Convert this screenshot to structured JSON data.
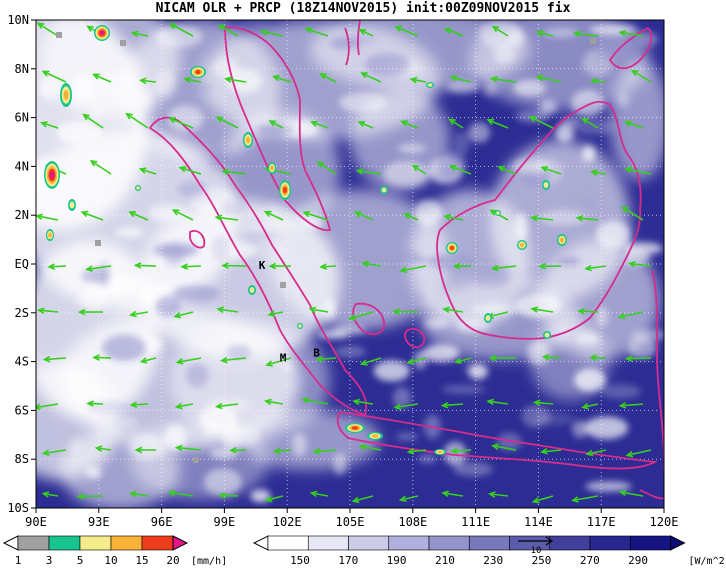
{
  "title": "NICAM OLR + PRCP (18Z14NOV2015) init:00Z09NOV2015 fix",
  "axes": {
    "lat_labels": [
      "10N",
      "8N",
      "6N",
      "4N",
      "2N",
      "EQ",
      "2S",
      "4S",
      "6S",
      "8S",
      "10S"
    ],
    "lon_labels": [
      "90E",
      "93E",
      "96E",
      "99E",
      "102E",
      "105E",
      "108E",
      "111E",
      "114E",
      "117E",
      "120E"
    ]
  },
  "markers": [
    {
      "label": "K",
      "lon": 100.8,
      "lat": -0.2
    },
    {
      "label": "M",
      "lon": 101.8,
      "lat": -4.0
    },
    {
      "label": "B",
      "lon": 103.4,
      "lat": -3.8
    }
  ],
  "precip_colorbar": {
    "ticks": [
      "1",
      "3",
      "5",
      "10",
      "15",
      "20"
    ],
    "unit": "[mm/h]",
    "colors": [
      "#a0a0a0",
      "#17c38e",
      "#f4ec8c",
      "#fbb23a",
      "#ee3d1c",
      "#e8148c"
    ]
  },
  "olr_colorbar": {
    "ticks": [
      "150",
      "170",
      "190",
      "210",
      "230",
      "250",
      "270",
      "290"
    ],
    "unit": "[W/m^2]",
    "colors": [
      "#ffffff",
      "#e6e6f4",
      "#cccce8",
      "#b0b0dc",
      "#9494cc",
      "#7878bc",
      "#5c5cac",
      "#40409c",
      "#282890",
      "#141482",
      "#0a0a78"
    ],
    "wind_ref": "10"
  },
  "colors": {
    "coast": "#d62c8c",
    "wind": "#35cf1e",
    "grid": "#ffffff",
    "ocean_base": "#2c2c94"
  }
}
